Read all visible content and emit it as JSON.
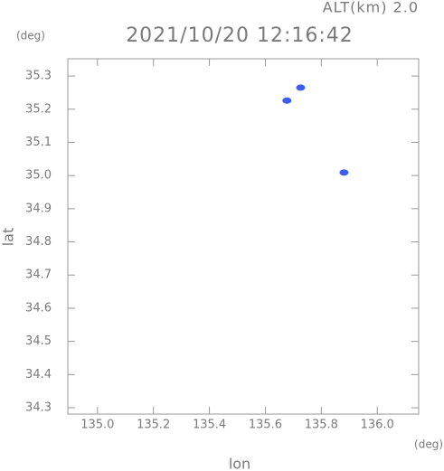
{
  "chart_data": {
    "type": "scatter",
    "header": "ALT(km) 2.0",
    "title": "2021/10/20 12:16:42",
    "x_label": "lon",
    "y_label": "lat",
    "x_unit": "(deg)",
    "y_unit": "(deg)",
    "x": [
      135.726,
      135.677,
      135.881
    ],
    "y": [
      35.265,
      35.226,
      35.009
    ],
    "color": "#3d5cf0",
    "xlim": [
      134.894,
      136.148
    ],
    "ylim": [
      34.281,
      35.352
    ],
    "xticks": [
      {
        "value": 135.0,
        "label": "135.0"
      },
      135.2,
      135.4,
      135.6,
      135.8,
      {
        "value": 136.0,
        "label": "136.0"
      }
    ],
    "yticks": [
      34.3,
      34.4,
      34.5,
      34.6,
      34.7,
      34.8,
      34.9,
      {
        "value": 35.0,
        "label": "35.0"
      },
      35.1,
      35.2,
      35.3
    ]
  }
}
